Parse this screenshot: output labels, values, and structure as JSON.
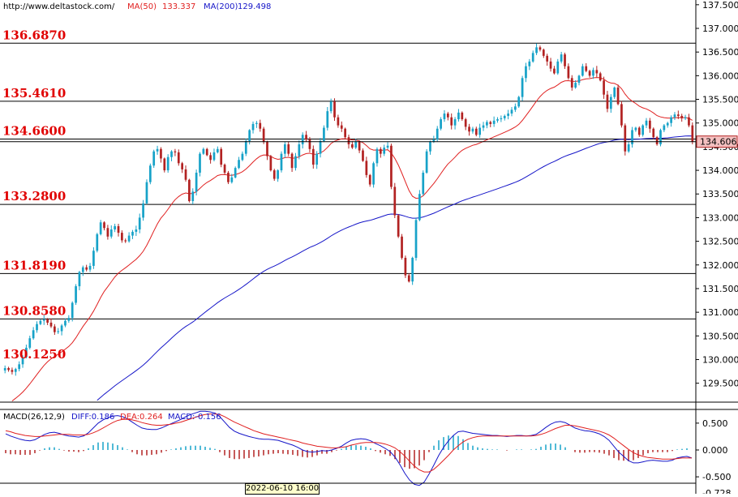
{
  "header": {
    "url": "http://www.deltastock.com/",
    "ma50_label": "MA(50)",
    "ma50_value": "133.337",
    "ma200_label": "MA(200)",
    "ma200_value": "129.498"
  },
  "macd_header": {
    "name": "MACD(26,12,9)",
    "diff": "DIFF:0.186",
    "dea": "DEA:0.264",
    "macd": "MACD:-0.156"
  },
  "cursor_time": "2022-06-10 16:00",
  "colors": {
    "up": "#17a2c8",
    "down": "#b22222",
    "ma50": "#e02020",
    "ma200": "#1515c8",
    "level_text": "#e00000",
    "diff": "#1515c8",
    "dea": "#e02020"
  },
  "chart_data": [
    {
      "type": "candlestick",
      "title": "",
      "price_axis": {
        "ylim": [
          129.1,
          137.6
        ],
        "ticks": [
          137.5,
          137.0,
          136.5,
          136.0,
          135.5,
          135.0,
          134.5,
          134.0,
          133.5,
          133.0,
          132.5,
          132.0,
          131.5,
          131.0,
          130.5,
          130.0,
          129.5
        ],
        "tick_labels": [
          "137.500",
          "137.000",
          "136.500",
          "136.000",
          "135.500",
          "135.000",
          "134.500",
          "134.000",
          "133.500",
          "133.000",
          "132.500",
          "132.000",
          "131.500",
          "131.000",
          "130.500",
          "130.000",
          "129.500"
        ]
      },
      "levels": [
        {
          "value": 136.687,
          "label": "136.6870"
        },
        {
          "value": 135.461,
          "label": "135.4610"
        },
        {
          "value": 134.66,
          "label": "134.6600"
        },
        {
          "value": 133.28,
          "label": "133.2800"
        },
        {
          "value": 131.819,
          "label": "131.8190"
        },
        {
          "value": 130.858,
          "label": "130.8580"
        },
        {
          "value": 130.125,
          "label": ""
        }
      ],
      "last_price": {
        "value": 134.606,
        "label": "134.606"
      },
      "closes": [
        129.82,
        129.78,
        129.74,
        129.8,
        129.9,
        130.05,
        130.25,
        130.45,
        130.62,
        130.75,
        130.82,
        130.85,
        130.78,
        130.7,
        130.58,
        130.6,
        130.72,
        130.82,
        130.88,
        131.2,
        131.55,
        131.85,
        131.95,
        131.9,
        131.98,
        132.3,
        132.65,
        132.9,
        132.78,
        132.6,
        132.75,
        132.82,
        132.68,
        132.52,
        132.5,
        132.62,
        132.7,
        132.75,
        133.0,
        133.3,
        133.75,
        134.1,
        134.4,
        134.45,
        134.25,
        134.0,
        134.28,
        134.4,
        134.38,
        134.15,
        134.02,
        133.8,
        133.35,
        133.55,
        133.95,
        134.35,
        134.45,
        134.32,
        134.22,
        134.38,
        134.45,
        134.12,
        133.95,
        133.75,
        133.85,
        134.05,
        134.22,
        134.35,
        134.62,
        134.85,
        134.98,
        135.0,
        134.88,
        134.6,
        134.3,
        134.0,
        133.82,
        134.0,
        134.35,
        134.55,
        134.35,
        134.05,
        134.3,
        134.55,
        134.75,
        134.65,
        134.45,
        134.12,
        134.35,
        134.62,
        134.9,
        135.25,
        135.45,
        135.12,
        134.95,
        134.88,
        134.7,
        134.55,
        134.48,
        134.6,
        134.42,
        134.2,
        133.9,
        133.7,
        134.15,
        134.45,
        134.35,
        134.48,
        134.52,
        133.65,
        133.05,
        132.6,
        132.15,
        131.78,
        131.65,
        132.15,
        132.95,
        133.5,
        133.95,
        134.4,
        134.6,
        134.65,
        134.88,
        135.08,
        135.2,
        135.12,
        134.95,
        135.08,
        135.22,
        135.08,
        134.92,
        134.82,
        134.88,
        134.75,
        134.9,
        134.95,
        135.02,
        134.98,
        135.05,
        135.08,
        135.1,
        135.15,
        135.2,
        135.28,
        135.35,
        135.55,
        135.95,
        136.2,
        136.3,
        136.48,
        136.6,
        136.55,
        136.42,
        136.3,
        136.15,
        136.05,
        136.3,
        136.45,
        136.2,
        135.95,
        135.75,
        135.85,
        136.0,
        136.2,
        136.1,
        136.0,
        136.12,
        136.05,
        135.9,
        135.6,
        135.3,
        135.55,
        135.75,
        135.4,
        134.95,
        134.4,
        134.55,
        134.85,
        134.9,
        134.75,
        134.95,
        135.05,
        134.88,
        134.7,
        134.55,
        134.85,
        134.95,
        135.0,
        135.12,
        135.18,
        135.15,
        135.1,
        135.12,
        134.95,
        134.6
      ]
    },
    {
      "type": "macd",
      "title": "",
      "value_axis": {
        "ylim": [
          -0.74,
          0.74
        ],
        "ticks": [
          0.5,
          0.0,
          -0.5
        ],
        "tick_labels": [
          "0.500",
          "0.000",
          "-0.500"
        ],
        "bottom_label": "-0.728"
      },
      "diff": [
        0.3,
        0.26,
        0.23,
        0.2,
        0.18,
        0.17,
        0.19,
        0.24,
        0.29,
        0.32,
        0.33,
        0.31,
        0.28,
        0.26,
        0.25,
        0.24,
        0.26,
        0.32,
        0.41,
        0.5,
        0.56,
        0.6,
        0.63,
        0.64,
        0.62,
        0.58,
        0.52,
        0.46,
        0.41,
        0.39,
        0.38,
        0.38,
        0.41,
        0.45,
        0.49,
        0.53,
        0.57,
        0.62,
        0.66,
        0.69,
        0.72,
        0.72,
        0.71,
        0.69,
        0.62,
        0.52,
        0.42,
        0.35,
        0.31,
        0.28,
        0.25,
        0.23,
        0.21,
        0.2,
        0.2,
        0.19,
        0.18,
        0.15,
        0.12,
        0.09,
        0.05,
        0.0,
        -0.03,
        -0.04,
        -0.03,
        -0.01,
        -0.02,
        0.0,
        0.03,
        0.07,
        0.13,
        0.18,
        0.2,
        0.21,
        0.2,
        0.17,
        0.12,
        0.08,
        0.03,
        -0.03,
        -0.13,
        -0.27,
        -0.43,
        -0.56,
        -0.64,
        -0.66,
        -0.6,
        -0.45,
        -0.28,
        -0.1,
        0.05,
        0.17,
        0.27,
        0.34,
        0.35,
        0.33,
        0.31,
        0.3,
        0.29,
        0.28,
        0.27,
        0.27,
        0.26,
        0.25,
        0.26,
        0.27,
        0.27,
        0.26,
        0.27,
        0.29,
        0.35,
        0.42,
        0.48,
        0.52,
        0.53,
        0.51,
        0.46,
        0.41,
        0.38,
        0.36,
        0.35,
        0.33,
        0.3,
        0.25,
        0.18,
        0.07,
        -0.04,
        -0.12,
        -0.2,
        -0.24,
        -0.24,
        -0.22,
        -0.2,
        -0.19,
        -0.2,
        -0.21,
        -0.21,
        -0.19,
        -0.15,
        -0.13,
        -0.12,
        -0.15
      ],
      "dea": [
        0.36,
        0.34,
        0.31,
        0.29,
        0.27,
        0.26,
        0.25,
        0.25,
        0.26,
        0.27,
        0.28,
        0.29,
        0.29,
        0.29,
        0.28,
        0.28,
        0.28,
        0.29,
        0.32,
        0.36,
        0.41,
        0.46,
        0.51,
        0.55,
        0.57,
        0.57,
        0.56,
        0.54,
        0.51,
        0.49,
        0.47,
        0.46,
        0.46,
        0.47,
        0.48,
        0.5,
        0.52,
        0.55,
        0.58,
        0.61,
        0.64,
        0.66,
        0.67,
        0.67,
        0.66,
        0.62,
        0.57,
        0.52,
        0.48,
        0.44,
        0.4,
        0.36,
        0.33,
        0.3,
        0.28,
        0.26,
        0.24,
        0.22,
        0.2,
        0.18,
        0.16,
        0.13,
        0.11,
        0.09,
        0.07,
        0.06,
        0.05,
        0.04,
        0.04,
        0.05,
        0.06,
        0.09,
        0.11,
        0.13,
        0.14,
        0.14,
        0.14,
        0.13,
        0.11,
        0.08,
        0.04,
        -0.03,
        -0.11,
        -0.21,
        -0.3,
        -0.37,
        -0.41,
        -0.41,
        -0.36,
        -0.28,
        -0.19,
        -0.1,
        0.0,
        0.08,
        0.15,
        0.2,
        0.23,
        0.25,
        0.26,
        0.26,
        0.26,
        0.26,
        0.26,
        0.26,
        0.26,
        0.26,
        0.26,
        0.26,
        0.26,
        0.27,
        0.29,
        0.32,
        0.36,
        0.4,
        0.43,
        0.46,
        0.46,
        0.45,
        0.43,
        0.41,
        0.39,
        0.37,
        0.35,
        0.32,
        0.28,
        0.22,
        0.15,
        0.08,
        0.01,
        -0.05,
        -0.09,
        -0.12,
        -0.14,
        -0.15,
        -0.16,
        -0.17,
        -0.17,
        -0.17,
        -0.16,
        -0.15,
        -0.15,
        -0.15
      ],
      "histogram": [
        -0.06,
        -0.08,
        -0.08,
        -0.09,
        -0.09,
        -0.09,
        -0.06,
        -0.01,
        0.03,
        0.05,
        0.05,
        0.02,
        -0.01,
        -0.03,
        -0.03,
        -0.04,
        -0.02,
        0.03,
        0.09,
        0.14,
        0.15,
        0.14,
        0.12,
        0.09,
        0.05,
        0.01,
        -0.04,
        -0.08,
        -0.1,
        -0.1,
        -0.09,
        -0.08,
        -0.05,
        -0.02,
        0.01,
        0.03,
        0.05,
        0.07,
        0.08,
        0.08,
        0.08,
        0.06,
        0.04,
        0.02,
        -0.04,
        -0.1,
        -0.15,
        -0.17,
        -0.17,
        -0.16,
        -0.15,
        -0.13,
        -0.12,
        -0.1,
        -0.08,
        -0.07,
        -0.06,
        -0.07,
        -0.08,
        -0.09,
        -0.11,
        -0.13,
        -0.14,
        -0.13,
        -0.1,
        -0.07,
        -0.07,
        -0.04,
        -0.01,
        0.02,
        0.07,
        0.09,
        0.09,
        0.08,
        0.06,
        0.03,
        -0.02,
        -0.05,
        -0.08,
        -0.11,
        -0.17,
        -0.24,
        -0.32,
        -0.35,
        -0.34,
        -0.29,
        -0.19,
        -0.04,
        0.08,
        0.18,
        0.24,
        0.27,
        0.27,
        0.26,
        0.2,
        0.13,
        0.08,
        0.05,
        0.03,
        0.02,
        0.01,
        0.01,
        0.0,
        -0.01,
        0.0,
        0.01,
        0.01,
        0.0,
        0.01,
        0.02,
        0.06,
        0.1,
        0.12,
        0.12,
        0.1,
        0.05,
        0.0,
        -0.04,
        -0.05,
        -0.05,
        -0.04,
        -0.04,
        -0.05,
        -0.07,
        -0.1,
        -0.15,
        -0.19,
        -0.2,
        -0.21,
        -0.19,
        -0.15,
        -0.1,
        -0.06,
        -0.04,
        -0.04,
        -0.04,
        -0.04,
        -0.02,
        0.01,
        0.02,
        0.03,
        0.0
      ]
    }
  ]
}
